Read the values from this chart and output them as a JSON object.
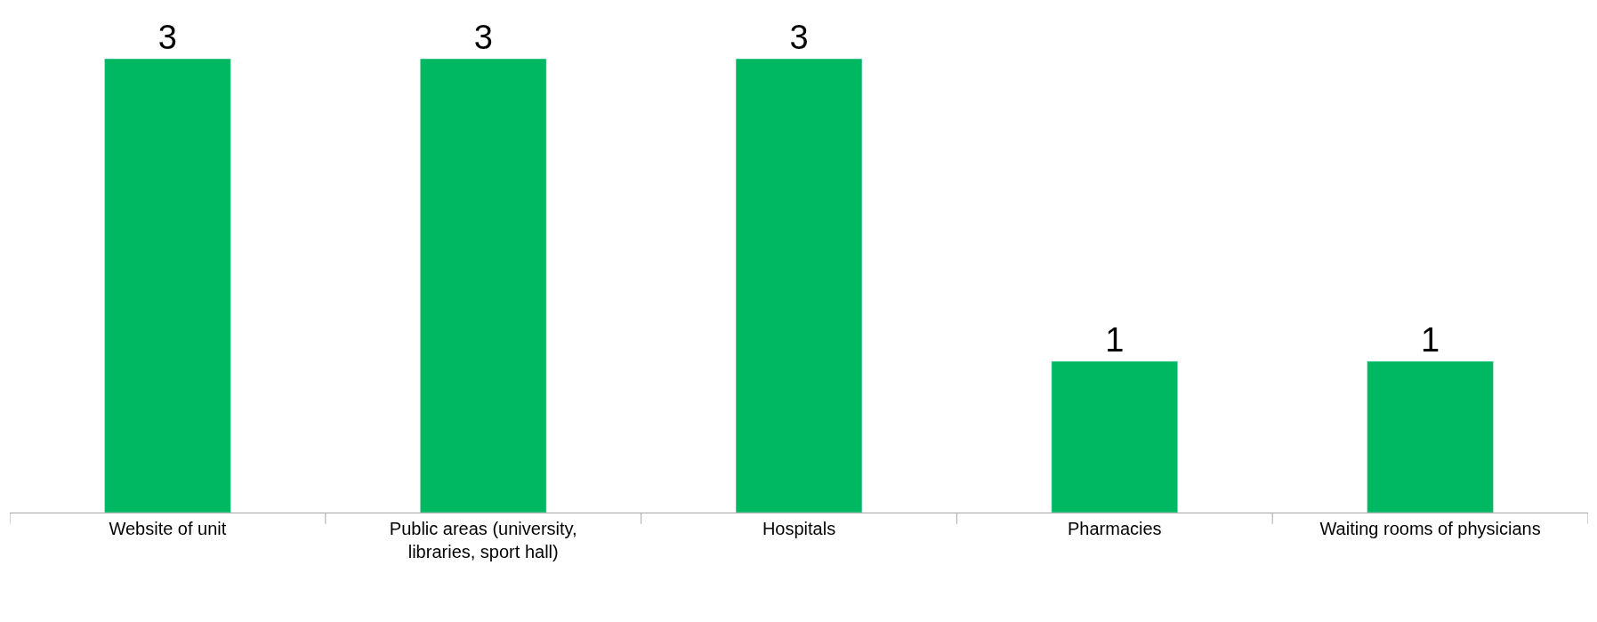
{
  "chart_data": {
    "type": "bar",
    "categories": [
      "Website of unit",
      "Public areas (university, libraries, sport hall)",
      "Hospitals",
      "Pharmacies",
      "Waiting rooms of physicians"
    ],
    "values": [
      3,
      3,
      3,
      1,
      1
    ],
    "color": "#00b862",
    "data_labels": true
  }
}
